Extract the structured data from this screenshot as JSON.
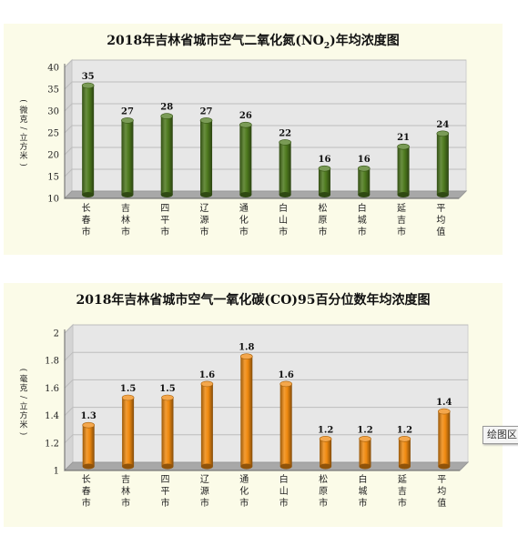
{
  "charts": {
    "no2": {
      "title_main": "2018年吉林省城市空气二氧化氮(NO",
      "title_sub": "2",
      "title_end": ")年均浓度图"
    },
    "co": {
      "title": "2018年吉林省城市空气一氧化碳(CO)95百分位数年均浓度图"
    }
  },
  "overlay_button": "绘图区",
  "chart_data": [
    {
      "type": "bar",
      "title": "2018年吉林省城市空气二氧化氮(NO2)年均浓度图",
      "ylabel": "微克/立方米",
      "ylim": [
        10,
        40
      ],
      "yticks": [
        10,
        15,
        20,
        25,
        30,
        35,
        40
      ],
      "categories": [
        "长春市",
        "吉林市",
        "四平市",
        "辽源市",
        "通化市",
        "白山市",
        "松原市",
        "白城市",
        "延吉市",
        "平均值"
      ],
      "values": [
        35,
        27,
        28,
        27,
        26,
        22,
        16,
        16,
        21,
        24
      ],
      "value_labels": [
        "35",
        "27",
        "28",
        "27",
        "26",
        "22",
        "16",
        "16",
        "21",
        "24"
      ],
      "bar_color": "#4e7a1e",
      "grid": true
    },
    {
      "type": "bar",
      "title": "2018年吉林省城市空气一氧化碳(CO)95百分位数年均浓度图",
      "ylabel": "毫克/立方米",
      "ylim": [
        1,
        2
      ],
      "yticks": [
        "1",
        "1.2",
        "1.4",
        "1.6",
        "1.8",
        "2"
      ],
      "categories": [
        "长春市",
        "吉林市",
        "四平市",
        "辽源市",
        "通化市",
        "白山市",
        "松原市",
        "白城市",
        "延吉市",
        "平均值"
      ],
      "values": [
        1.3,
        1.5,
        1.5,
        1.6,
        1.8,
        1.6,
        1.2,
        1.2,
        1.2,
        1.4
      ],
      "value_labels": [
        "1.3",
        "1.5",
        "1.5",
        "1.6",
        "1.8",
        "1.6",
        "1.2",
        "1.2",
        "1.2",
        "1.4"
      ],
      "bar_color": "#f08a10",
      "grid": true
    }
  ]
}
